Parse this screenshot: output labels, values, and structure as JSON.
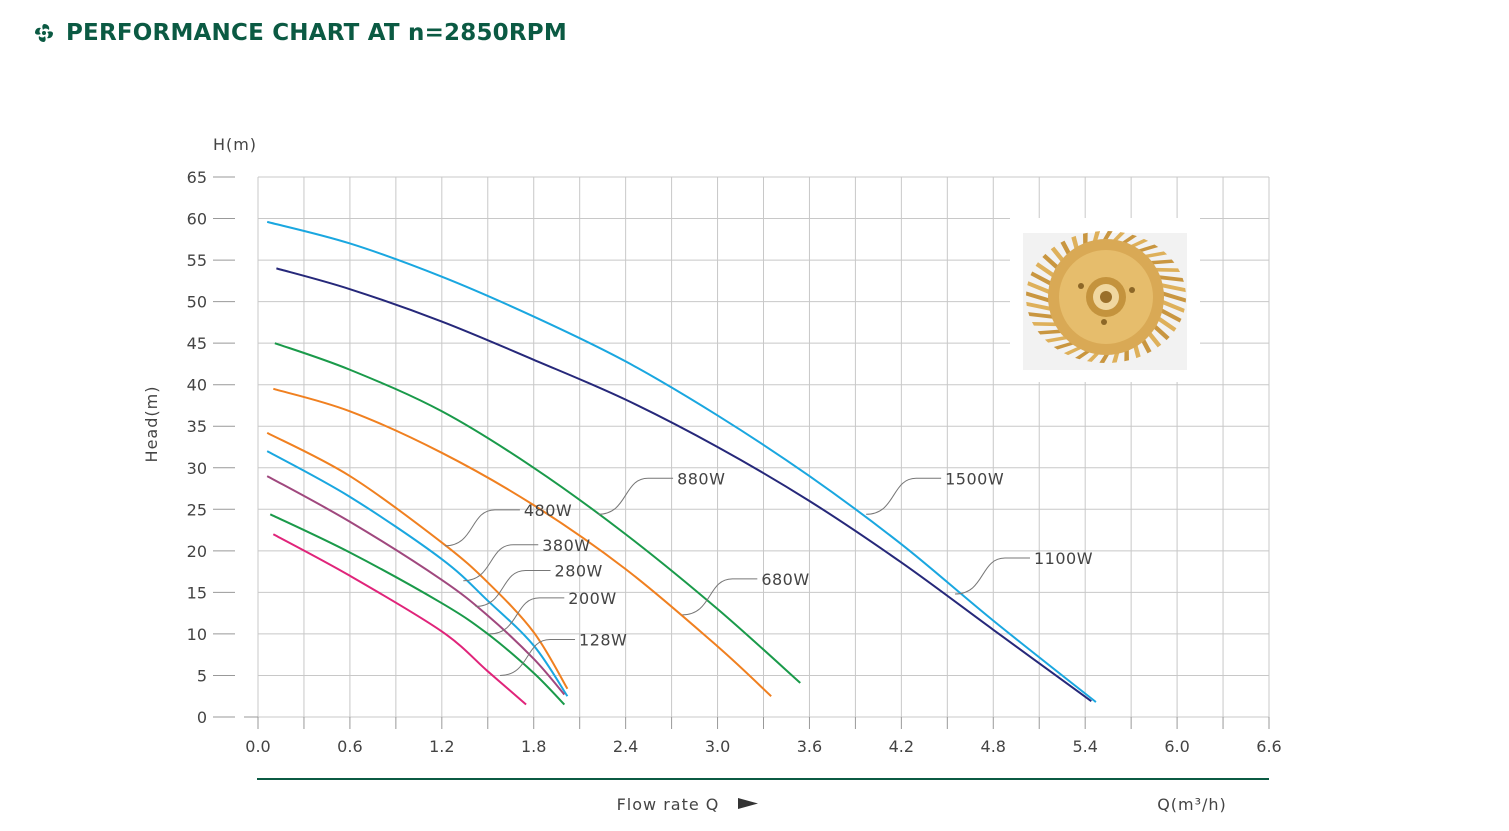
{
  "header": {
    "title": "PERFORMANCE CHART AT n=2850RPM",
    "logo_icon": "swirl-logo-icon",
    "title_color": "#0b5a43"
  },
  "inset_image": {
    "icon": "bronze-impeller-photo"
  },
  "chart_data": {
    "type": "line",
    "title": "PERFORMANCE CHART AT n=2850RPM",
    "y_unit_label": "H(m)",
    "ylabel": "Head(m)",
    "xlabel": "Flow rate Q",
    "x_unit_label": "Q(m³/h)",
    "xlim": [
      0,
      6.6
    ],
    "ylim": [
      0,
      65
    ],
    "x_ticks": [
      "0.0",
      "0.6",
      "1.2",
      "1.8",
      "2.4",
      "3.0",
      "3.6",
      "4.2",
      "4.8",
      "5.4",
      "6.0",
      "6.6"
    ],
    "y_ticks": [
      "0",
      "5",
      "10",
      "15",
      "20",
      "25",
      "30",
      "35",
      "40",
      "45",
      "50",
      "55",
      "60",
      "65"
    ],
    "grid": true,
    "series": [
      {
        "name": "1500W",
        "color": "#1aa7e0",
        "x": [
          0.06,
          0.6,
          1.2,
          1.8,
          2.4,
          3.0,
          3.6,
          4.2,
          4.8,
          5.47
        ],
        "y": [
          59.6,
          57.0,
          53.0,
          48.2,
          42.8,
          36.3,
          29.0,
          20.8,
          11.6,
          1.8
        ],
        "label_q": 3.97,
        "label_h": 24.4
      },
      {
        "name": "1100W",
        "color": "#26287a",
        "x": [
          0.12,
          0.6,
          1.2,
          1.8,
          2.4,
          3.0,
          3.6,
          4.2,
          4.8,
          5.44
        ],
        "y": [
          54.0,
          51.5,
          47.6,
          43.0,
          38.2,
          32.5,
          26.0,
          18.6,
          10.5,
          1.9
        ],
        "label_q": 4.55,
        "label_h": 14.8
      },
      {
        "name": "880W",
        "color": "#1a9a4a",
        "x": [
          0.11,
          0.6,
          1.2,
          1.8,
          2.4,
          3.0,
          3.54
        ],
        "y": [
          45.0,
          41.8,
          36.8,
          30.0,
          22.0,
          13.0,
          4.1
        ],
        "label_q": 2.22,
        "label_h": 24.4
      },
      {
        "name": "680W",
        "color": "#f08020",
        "x": [
          0.1,
          0.6,
          1.2,
          1.8,
          2.4,
          3.0,
          3.35
        ],
        "y": [
          39.5,
          36.8,
          31.8,
          25.5,
          17.8,
          8.5,
          2.5
        ],
        "label_q": 2.77,
        "label_h": 12.3
      },
      {
        "name": "480W",
        "color": "#f08020",
        "x": [
          0.06,
          0.6,
          1.2,
          1.5,
          1.8,
          2.02
        ],
        "y": [
          34.2,
          29.0,
          21.0,
          16.2,
          10.2,
          3.4
        ],
        "label_q": 1.22,
        "label_h": 20.6
      },
      {
        "name": "380W",
        "color": "#1aa7e0",
        "x": [
          0.06,
          0.6,
          1.2,
          1.5,
          1.8,
          2.02
        ],
        "y": [
          32.0,
          26.5,
          19.0,
          14.0,
          8.6,
          2.5
        ],
        "label_q": 1.34,
        "label_h": 16.4
      },
      {
        "name": "280W",
        "color": "#a0487e",
        "x": [
          0.06,
          0.6,
          1.2,
          1.5,
          1.8,
          2.0
        ],
        "y": [
          29.0,
          23.5,
          16.5,
          12.2,
          7.0,
          2.7
        ],
        "label_q": 1.42,
        "label_h": 13.3
      },
      {
        "name": "200W",
        "color": "#1a9a4a",
        "x": [
          0.08,
          0.6,
          1.2,
          1.5,
          1.8,
          2.0
        ],
        "y": [
          24.4,
          19.8,
          13.7,
          10.0,
          5.3,
          1.5
        ],
        "label_q": 1.51,
        "label_h": 10.0
      },
      {
        "name": "128W",
        "color": "#e0247a",
        "x": [
          0.1,
          0.6,
          1.2,
          1.5,
          1.75
        ],
        "y": [
          22.0,
          17.0,
          10.3,
          5.5,
          1.5
        ],
        "label_q": 1.58,
        "label_h": 5.0
      }
    ]
  }
}
